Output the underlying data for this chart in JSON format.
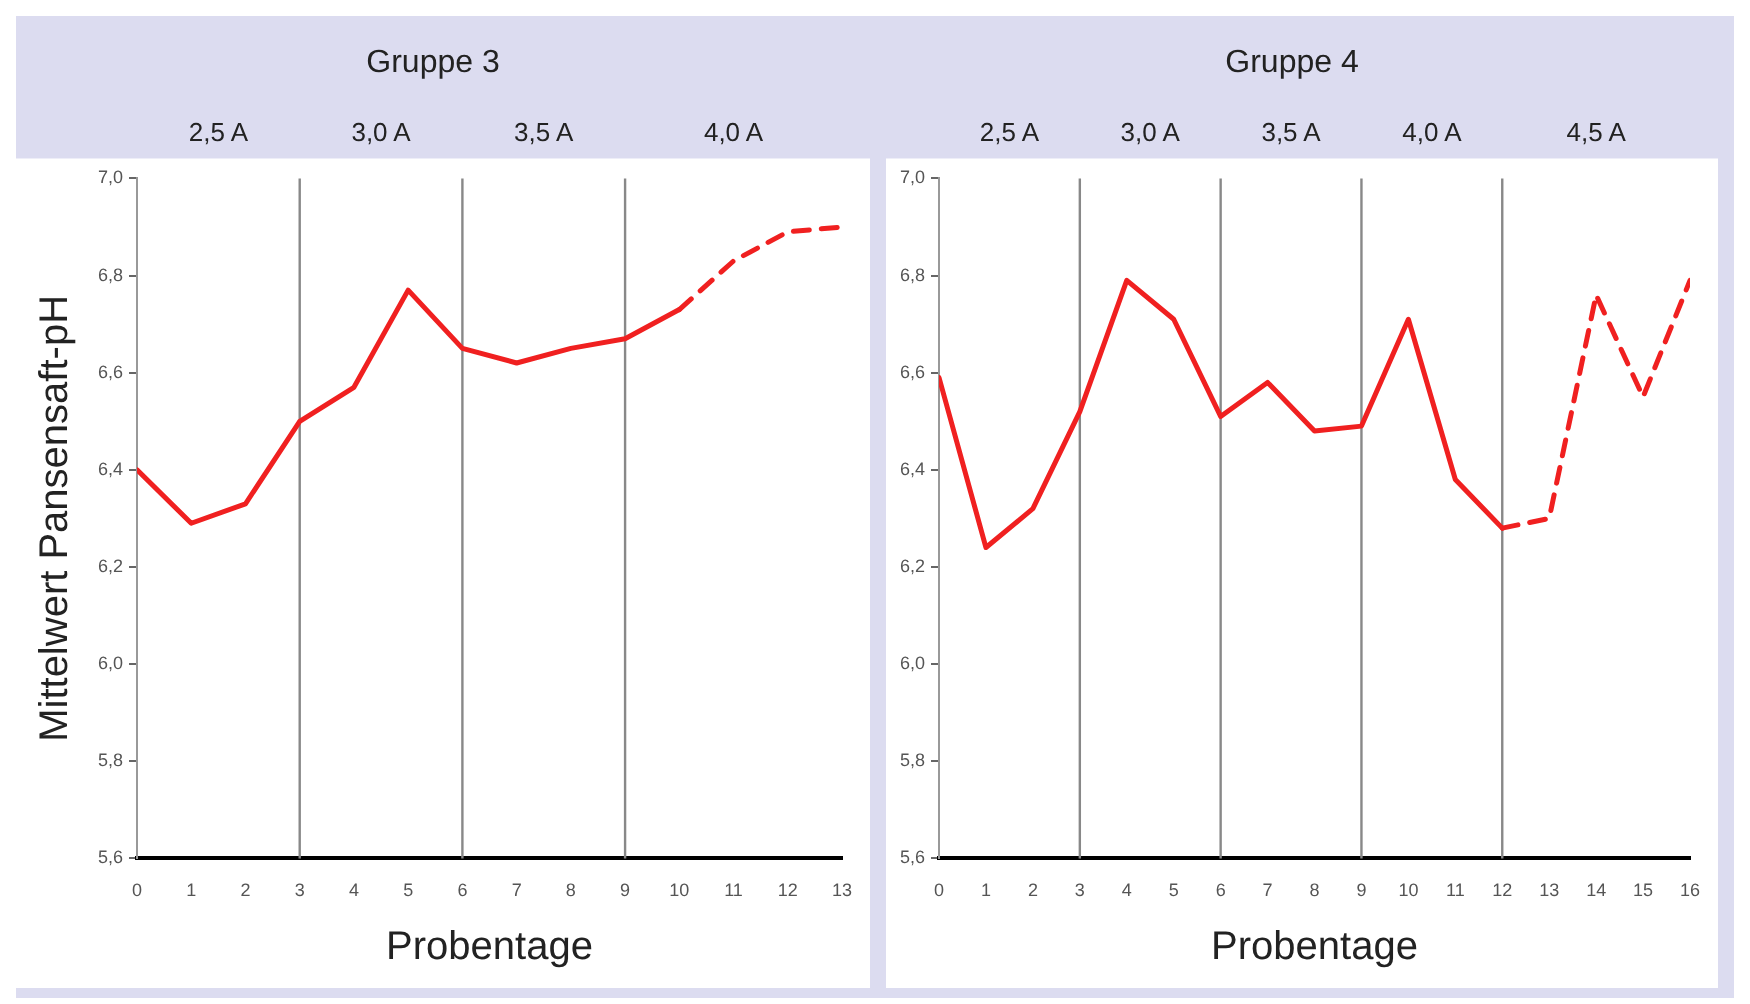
{
  "chart_data": [
    {
      "type": "line",
      "title": "Gruppe 3",
      "xlabel": "Probentage",
      "ylabel": "Mittelwert Pansensaft-pH",
      "series": [
        {
          "color": "#f02020",
          "line_style": "solid",
          "x": [
            0,
            1,
            2,
            3,
            4,
            5,
            6,
            7,
            8,
            9,
            10
          ],
          "values": [
            6.4,
            6.29,
            6.33,
            6.5,
            6.57,
            6.77,
            6.65,
            6.62,
            6.65,
            6.67,
            6.73
          ]
        },
        {
          "color": "#f02020",
          "line_style": "dashed",
          "x": [
            10,
            11,
            12,
            13
          ],
          "values": [
            6.73,
            6.83,
            6.89,
            6.9
          ]
        }
      ],
      "xlim": [
        0,
        13
      ],
      "xticks": [
        0,
        1,
        2,
        3,
        4,
        5,
        6,
        7,
        8,
        9,
        10,
        11,
        12,
        13
      ],
      "ylim": [
        5.6,
        7.0
      ],
      "yticks": [
        {
          "value": 5.6,
          "label": "5,6"
        },
        {
          "value": 5.8,
          "label": "5,8"
        },
        {
          "value": 6.0,
          "label": "6,0"
        },
        {
          "value": 6.2,
          "label": "6,2"
        },
        {
          "value": 6.4,
          "label": "6,4"
        },
        {
          "value": 6.6,
          "label": "6,6"
        },
        {
          "value": 6.8,
          "label": "6,8"
        },
        {
          "value": 7.0,
          "label": "7,0"
        }
      ],
      "ref_lines": [
        {
          "axis": "x",
          "value": 3,
          "color": "#888888"
        },
        {
          "axis": "x",
          "value": 6,
          "color": "#888888"
        },
        {
          "axis": "x",
          "value": 9,
          "color": "#888888"
        }
      ],
      "annotations": [
        "2,5 A",
        "3,0 A",
        "3,5 A",
        "4,0 A"
      ],
      "grid": false,
      "legend": false,
      "marker": "none"
    },
    {
      "type": "line",
      "title": "Gruppe 4",
      "xlabel": "Probentage",
      "series": [
        {
          "color": "#f02020",
          "line_style": "solid",
          "x": [
            0,
            1,
            2,
            3,
            4,
            5,
            6,
            7,
            8,
            9,
            10,
            11,
            12
          ],
          "values": [
            6.59,
            6.24,
            6.32,
            6.52,
            6.79,
            6.71,
            6.51,
            6.58,
            6.48,
            6.49,
            6.71,
            6.38,
            6.28
          ]
        },
        {
          "color": "#f02020",
          "line_style": "dashed",
          "x": [
            12,
            13,
            14,
            15,
            16
          ],
          "values": [
            6.28,
            6.3,
            6.76,
            6.55,
            6.79
          ]
        }
      ],
      "xlim": [
        0,
        16
      ],
      "xticks": [
        0,
        1,
        2,
        3,
        4,
        5,
        6,
        7,
        8,
        9,
        10,
        11,
        12,
        13,
        14,
        15,
        16
      ],
      "ylim": [
        5.6,
        7.0
      ],
      "yticks": [
        {
          "value": 5.6,
          "label": "5,6"
        },
        {
          "value": 5.8,
          "label": "5,8"
        },
        {
          "value": 6.0,
          "label": "6,0"
        },
        {
          "value": 6.2,
          "label": "6,2"
        },
        {
          "value": 6.4,
          "label": "6,4"
        },
        {
          "value": 6.6,
          "label": "6,6"
        },
        {
          "value": 6.8,
          "label": "6,8"
        },
        {
          "value": 7.0,
          "label": "7,0"
        }
      ],
      "ref_lines": [
        {
          "axis": "x",
          "value": 3,
          "color": "#888888"
        },
        {
          "axis": "x",
          "value": 6,
          "color": "#888888"
        },
        {
          "axis": "x",
          "value": 9,
          "color": "#888888"
        },
        {
          "axis": "x",
          "value": 12,
          "color": "#888888"
        }
      ],
      "annotations": [
        "2,5 A",
        "3,0 A",
        "3,5 A",
        "4,0 A",
        "4,5 A"
      ],
      "grid": false,
      "legend": false,
      "marker": "none"
    }
  ]
}
